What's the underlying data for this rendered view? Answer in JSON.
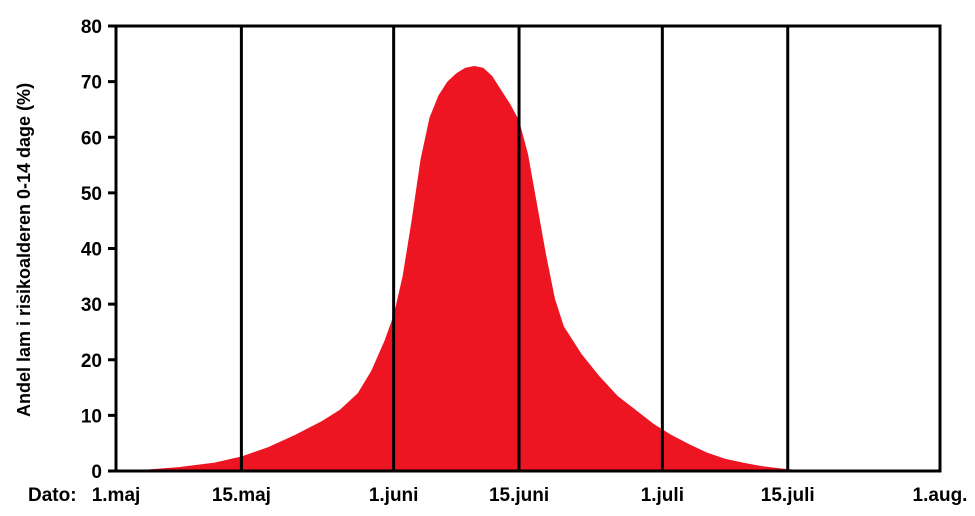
{
  "chart_data": {
    "type": "area",
    "title": "",
    "ylabel": "Andel lam i risikoalderen 0-14 dage (%)",
    "xlabel_prefix": "Dato:",
    "x_ticks": [
      "1.maj",
      "15.maj",
      "1.juni",
      "15.juni",
      "1.juli",
      "15.juli",
      "1.aug."
    ],
    "y_ticks": [
      0,
      10,
      20,
      30,
      40,
      50,
      60,
      70,
      80
    ],
    "ylim": [
      0,
      80
    ],
    "xlim_days": [
      0,
      92
    ],
    "grid": "vertical",
    "colors": {
      "fill": "#ee1522",
      "axis": "#000000"
    },
    "series": [
      {
        "x_days": [
          0,
          3,
          7,
          11,
          14,
          17,
          20,
          23,
          25,
          27,
          28.5,
          30,
          31,
          32,
          33,
          34,
          35,
          36,
          37,
          38,
          39,
          40,
          41,
          42,
          43,
          44,
          45,
          46,
          47,
          48,
          49,
          50,
          52,
          54,
          56,
          58,
          60,
          62,
          64,
          66,
          68,
          70,
          72,
          74,
          76,
          78,
          80,
          83,
          85,
          86.5,
          88,
          92
        ],
        "values": [
          0,
          0.2,
          0.7,
          1.5,
          2.6,
          4.3,
          6.5,
          9.0,
          11.0,
          14.0,
          18.0,
          23.5,
          28.0,
          35.0,
          45.0,
          56.0,
          63.5,
          67.5,
          70.0,
          71.5,
          72.5,
          72.8,
          72.5,
          71.0,
          68.5,
          66.0,
          63.0,
          57.0,
          48.0,
          39.0,
          31.0,
          26.0,
          21.0,
          17.0,
          13.5,
          11.0,
          8.5,
          6.5,
          4.8,
          3.3,
          2.2,
          1.5,
          0.9,
          0.5,
          0.2,
          0.1,
          0.05,
          0.02,
          0,
          0,
          0,
          0
        ]
      }
    ]
  }
}
